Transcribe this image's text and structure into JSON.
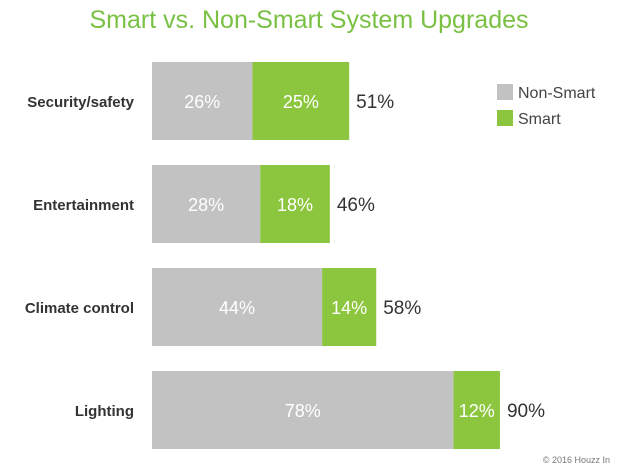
{
  "chart_data": {
    "type": "bar",
    "orientation": "horizontal",
    "stacked": true,
    "title": "Smart vs. Non-Smart System Upgrades",
    "categories": [
      "Security/safety",
      "Entertainment",
      "Climate control",
      "Lighting"
    ],
    "series": [
      {
        "name": "Non-Smart",
        "color": "#c2c2c2",
        "values": [
          26,
          28,
          44,
          78
        ],
        "labels": [
          "26%",
          "28%",
          "44%",
          "78%"
        ]
      },
      {
        "name": "Smart",
        "color": "#8cc63f",
        "values": [
          25,
          18,
          14,
          12
        ],
        "labels": [
          "25%",
          "18%",
          "14%",
          "12%"
        ]
      }
    ],
    "totals": [
      51,
      46,
      58,
      90
    ],
    "total_labels": [
      "51%",
      "46%",
      "58%",
      "90%"
    ],
    "xlim": [
      0,
      100
    ],
    "grid": false,
    "legend": "top-right"
  },
  "credit": "© 2016 Houzz In"
}
